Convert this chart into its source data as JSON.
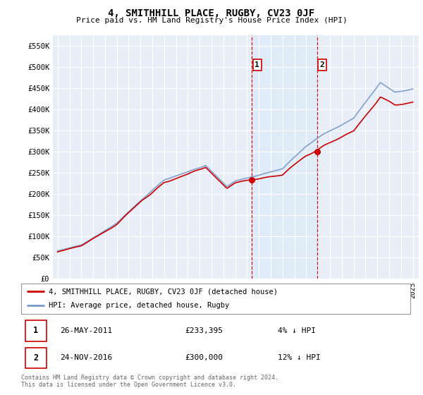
{
  "title": "4, SMITHHILL PLACE, RUGBY, CV23 0JF",
  "subtitle": "Price paid vs. HM Land Registry's House Price Index (HPI)",
  "legend_label_red": "4, SMITHHILL PLACE, RUGBY, CV23 0JF (detached house)",
  "legend_label_blue": "HPI: Average price, detached house, Rugby",
  "annotation1_date": "26-MAY-2011",
  "annotation1_price": "£233,395",
  "annotation1_hpi": "4% ↓ HPI",
  "annotation1_year": 2011.4,
  "annotation1_value": 233395,
  "annotation2_date": "24-NOV-2016",
  "annotation2_price": "£300,000",
  "annotation2_hpi": "12% ↓ HPI",
  "annotation2_year": 2016.9,
  "annotation2_value": 300000,
  "footer": "Contains HM Land Registry data © Crown copyright and database right 2024.\nThis data is licensed under the Open Government Licence v3.0.",
  "ylim": [
    0,
    575000
  ],
  "yticks": [
    0,
    50000,
    100000,
    150000,
    200000,
    250000,
    300000,
    350000,
    400000,
    450000,
    500000,
    550000
  ],
  "ytick_labels": [
    "£0",
    "£50K",
    "£100K",
    "£150K",
    "£200K",
    "£250K",
    "£300K",
    "£350K",
    "£400K",
    "£450K",
    "£500K",
    "£550K"
  ],
  "background_color": "#ffffff",
  "plot_bg_color": "#e8eef8",
  "grid_color": "#ffffff",
  "red_color": "#cc0000",
  "blue_color": "#7799cc",
  "vline_color": "#cc0000",
  "highlight_color": "#d8e8f8"
}
